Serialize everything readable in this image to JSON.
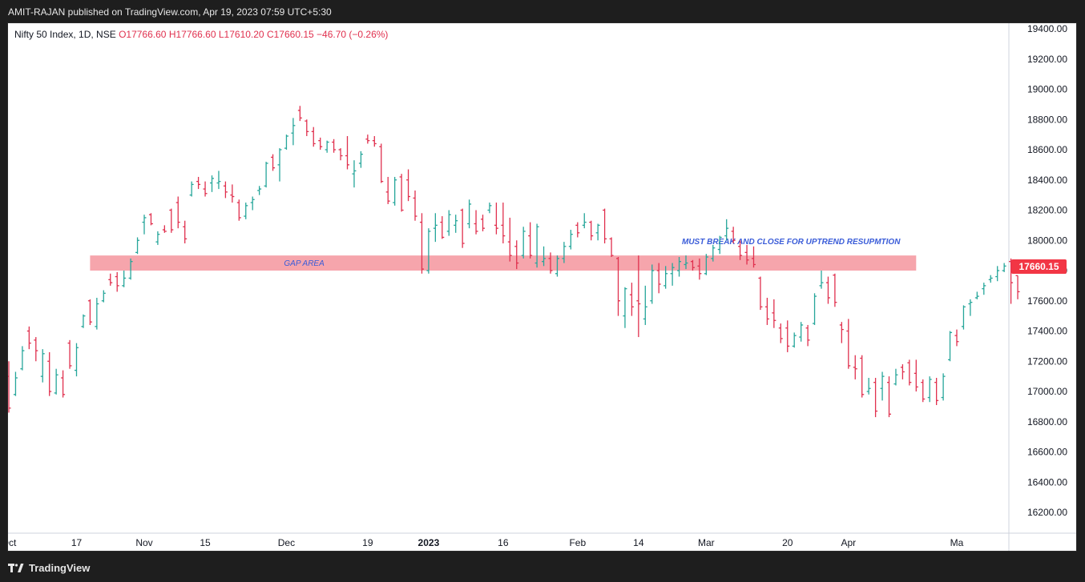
{
  "header": {
    "publisher_line": "AMIT-RAJAN published on TradingView.com, Apr 19, 2023 07:59 UTC+5:30"
  },
  "legend": {
    "symbol": "Nifty 50 Index, 1D, NSE",
    "open": "O17766.60",
    "high": "H17766.60",
    "low": "L17610.20",
    "close": "C17660.15",
    "change": "−46.70 (−0.26%)"
  },
  "price_badge": "17660.15",
  "footer": {
    "brand": "TradingView"
  },
  "colors": {
    "up": "#26a69a",
    "down": "#e0304e",
    "zone_fill": "#f6a0a8",
    "zone_text": "#3a5cd8",
    "badge": "#f23645"
  },
  "chart_data": {
    "type": "ohlc",
    "title": "Nifty 50 Index, 1D, NSE",
    "ylim": [
      16000,
      19500
    ],
    "y_ticks": [
      "19400.00",
      "19200.00",
      "19000.00",
      "18800.00",
      "18600.00",
      "18400.00",
      "18200.00",
      "18000.00",
      "17800.00",
      "17600.00",
      "17400.00",
      "17200.00",
      "17000.00",
      "16800.00",
      "16600.00",
      "16400.00",
      "16200.00"
    ],
    "x_ticks": [
      {
        "label": "Oct",
        "bar": 0
      },
      {
        "label": "17",
        "bar": 10
      },
      {
        "label": "Nov",
        "bar": 20
      },
      {
        "label": "15",
        "bar": 29
      },
      {
        "label": "Dec",
        "bar": 41
      },
      {
        "label": "19",
        "bar": 53
      },
      {
        "label": "2023",
        "bar": 62
      },
      {
        "label": "16",
        "bar": 73
      },
      {
        "label": "Feb",
        "bar": 84
      },
      {
        "label": "14",
        "bar": 93
      },
      {
        "label": "Mar",
        "bar": 103
      },
      {
        "label": "20",
        "bar": 115
      },
      {
        "label": "Apr",
        "bar": 124
      },
      {
        "label": "Ma",
        "bar": 140
      }
    ],
    "zone": {
      "low": 17800,
      "high": 17900,
      "bar_start": 12,
      "bar_end": 134,
      "label": "GAP AREA"
    },
    "annotation": {
      "text": "MUST BREAK AND CLOSE FOR UPTREND RESUPMTION",
      "bar": 100,
      "price": 17990
    },
    "series": [
      {
        "o": 17100,
        "h": 17200,
        "l": 16860,
        "c": 16890
      },
      {
        "o": 16980,
        "h": 17130,
        "l": 16970,
        "c": 17090
      },
      {
        "o": 17150,
        "h": 17300,
        "l": 17140,
        "c": 17270
      },
      {
        "o": 17400,
        "h": 17430,
        "l": 17280,
        "c": 17320
      },
      {
        "o": 17340,
        "h": 17360,
        "l": 17200,
        "c": 17270
      },
      {
        "o": 17100,
        "h": 17280,
        "l": 17060,
        "c": 17250
      },
      {
        "o": 17200,
        "h": 17260,
        "l": 16970,
        "c": 17000
      },
      {
        "o": 16990,
        "h": 17150,
        "l": 16980,
        "c": 17110
      },
      {
        "o": 17090,
        "h": 17140,
        "l": 16960,
        "c": 16980
      },
      {
        "o": 17320,
        "h": 17340,
        "l": 17150,
        "c": 17170
      },
      {
        "o": 17140,
        "h": 17320,
        "l": 17100,
        "c": 17290
      },
      {
        "o": 17430,
        "h": 17510,
        "l": 17420,
        "c": 17500
      },
      {
        "o": 17600,
        "h": 17610,
        "l": 17440,
        "c": 17460
      },
      {
        "o": 17430,
        "h": 17620,
        "l": 17410,
        "c": 17580
      },
      {
        "o": 17600,
        "h": 17670,
        "l": 17590,
        "c": 17650
      },
      {
        "o": 17740,
        "h": 17780,
        "l": 17700,
        "c": 17720
      },
      {
        "o": 17760,
        "h": 17790,
        "l": 17660,
        "c": 17700
      },
      {
        "o": 17700,
        "h": 17800,
        "l": 17690,
        "c": 17750
      },
      {
        "o": 17750,
        "h": 17880,
        "l": 17740,
        "c": 17860
      },
      {
        "o": 17920,
        "h": 18020,
        "l": 17910,
        "c": 18000
      },
      {
        "o": 18120,
        "h": 18170,
        "l": 18040,
        "c": 18150
      },
      {
        "o": 18170,
        "h": 18180,
        "l": 18100,
        "c": 18110
      },
      {
        "o": 17990,
        "h": 18060,
        "l": 17970,
        "c": 18040
      },
      {
        "o": 18070,
        "h": 18100,
        "l": 18050,
        "c": 18060
      },
      {
        "o": 18200,
        "h": 18210,
        "l": 18050,
        "c": 18070
      },
      {
        "o": 18250,
        "h": 18290,
        "l": 18080,
        "c": 18120
      },
      {
        "o": 18090,
        "h": 18130,
        "l": 17980,
        "c": 18010
      },
      {
        "o": 18300,
        "h": 18390,
        "l": 18290,
        "c": 18370
      },
      {
        "o": 18390,
        "h": 18420,
        "l": 18340,
        "c": 18370
      },
      {
        "o": 18340,
        "h": 18390,
        "l": 18290,
        "c": 18310
      },
      {
        "o": 18380,
        "h": 18430,
        "l": 18320,
        "c": 18410
      },
      {
        "o": 18380,
        "h": 18460,
        "l": 18340,
        "c": 18390
      },
      {
        "o": 18360,
        "h": 18390,
        "l": 18280,
        "c": 18320
      },
      {
        "o": 18300,
        "h": 18370,
        "l": 18250,
        "c": 18290
      },
      {
        "o": 18250,
        "h": 18270,
        "l": 18130,
        "c": 18150
      },
      {
        "o": 18160,
        "h": 18250,
        "l": 18140,
        "c": 18230
      },
      {
        "o": 18250,
        "h": 18290,
        "l": 18200,
        "c": 18270
      },
      {
        "o": 18330,
        "h": 18360,
        "l": 18300,
        "c": 18340
      },
      {
        "o": 18360,
        "h": 18520,
        "l": 18350,
        "c": 18510
      },
      {
        "o": 18550,
        "h": 18570,
        "l": 18460,
        "c": 18480
      },
      {
        "o": 18500,
        "h": 18610,
        "l": 18390,
        "c": 18600
      },
      {
        "o": 18610,
        "h": 18700,
        "l": 18600,
        "c": 18690
      },
      {
        "o": 18710,
        "h": 18810,
        "l": 18630,
        "c": 18760
      },
      {
        "o": 18860,
        "h": 18890,
        "l": 18790,
        "c": 18810
      },
      {
        "o": 18790,
        "h": 18800,
        "l": 18690,
        "c": 18720
      },
      {
        "o": 18720,
        "h": 18750,
        "l": 18620,
        "c": 18640
      },
      {
        "o": 18660,
        "h": 18680,
        "l": 18600,
        "c": 18620
      },
      {
        "o": 18600,
        "h": 18660,
        "l": 18580,
        "c": 18650
      },
      {
        "o": 18650,
        "h": 18670,
        "l": 18580,
        "c": 18600
      },
      {
        "o": 18600,
        "h": 18610,
        "l": 18530,
        "c": 18560
      },
      {
        "o": 18560,
        "h": 18690,
        "l": 18470,
        "c": 18500
      },
      {
        "o": 18440,
        "h": 18530,
        "l": 18350,
        "c": 18460
      },
      {
        "o": 18510,
        "h": 18590,
        "l": 18480,
        "c": 18570
      },
      {
        "o": 18670,
        "h": 18700,
        "l": 18640,
        "c": 18660
      },
      {
        "o": 18660,
        "h": 18690,
        "l": 18620,
        "c": 18640
      },
      {
        "o": 18620,
        "h": 18640,
        "l": 18380,
        "c": 18390
      },
      {
        "o": 18320,
        "h": 18420,
        "l": 18240,
        "c": 18260
      },
      {
        "o": 18250,
        "h": 18420,
        "l": 18230,
        "c": 18400
      },
      {
        "o": 18420,
        "h": 18440,
        "l": 18190,
        "c": 18200
      },
      {
        "o": 18400,
        "h": 18470,
        "l": 18260,
        "c": 18290
      },
      {
        "o": 18280,
        "h": 18330,
        "l": 18130,
        "c": 18160
      },
      {
        "o": 18120,
        "h": 18180,
        "l": 17780,
        "c": 17810
      },
      {
        "o": 17800,
        "h": 18080,
        "l": 17780,
        "c": 18060
      },
      {
        "o": 18080,
        "h": 18180,
        "l": 17990,
        "c": 18100
      },
      {
        "o": 18120,
        "h": 18160,
        "l": 18010,
        "c": 18020
      },
      {
        "o": 18060,
        "h": 18200,
        "l": 18030,
        "c": 18170
      },
      {
        "o": 18100,
        "h": 18170,
        "l": 18050,
        "c": 18130
      },
      {
        "o": 18200,
        "h": 18210,
        "l": 17950,
        "c": 17980
      },
      {
        "o": 18110,
        "h": 18270,
        "l": 18080,
        "c": 18240
      },
      {
        "o": 18110,
        "h": 18200,
        "l": 18040,
        "c": 18060
      },
      {
        "o": 18140,
        "h": 18170,
        "l": 18060,
        "c": 18080
      },
      {
        "o": 18200,
        "h": 18250,
        "l": 18180,
        "c": 18230
      },
      {
        "o": 18100,
        "h": 18250,
        "l": 18040,
        "c": 18080
      },
      {
        "o": 18100,
        "h": 18250,
        "l": 17980,
        "c": 18030
      },
      {
        "o": 17990,
        "h": 18150,
        "l": 17860,
        "c": 17900
      },
      {
        "o": 17960,
        "h": 18000,
        "l": 17810,
        "c": 17850
      },
      {
        "o": 17900,
        "h": 18090,
        "l": 17880,
        "c": 18060
      },
      {
        "o": 18030,
        "h": 18120,
        "l": 17880,
        "c": 17900
      },
      {
        "o": 17850,
        "h": 18110,
        "l": 17820,
        "c": 18090
      },
      {
        "o": 17860,
        "h": 17960,
        "l": 17830,
        "c": 17880
      },
      {
        "o": 17880,
        "h": 17920,
        "l": 17780,
        "c": 17800
      },
      {
        "o": 17780,
        "h": 17900,
        "l": 17760,
        "c": 17880
      },
      {
        "o": 17880,
        "h": 17990,
        "l": 17850,
        "c": 17960
      },
      {
        "o": 17960,
        "h": 18070,
        "l": 17940,
        "c": 18040
      },
      {
        "o": 18100,
        "h": 18120,
        "l": 18020,
        "c": 18050
      },
      {
        "o": 18100,
        "h": 18180,
        "l": 18080,
        "c": 18120
      },
      {
        "o": 18120,
        "h": 18130,
        "l": 18000,
        "c": 18030
      },
      {
        "o": 18050,
        "h": 18110,
        "l": 18000,
        "c": 18100
      },
      {
        "o": 18200,
        "h": 18210,
        "l": 17980,
        "c": 18010
      },
      {
        "o": 18010,
        "h": 18020,
        "l": 17890,
        "c": 17900
      },
      {
        "o": 17880,
        "h": 17890,
        "l": 17500,
        "c": 17600
      },
      {
        "o": 17500,
        "h": 17690,
        "l": 17420,
        "c": 17680
      },
      {
        "o": 17640,
        "h": 17720,
        "l": 17500,
        "c": 17560
      },
      {
        "o": 17600,
        "h": 17900,
        "l": 17360,
        "c": 17580
      },
      {
        "o": 17480,
        "h": 17700,
        "l": 17440,
        "c": 17560
      },
      {
        "o": 17600,
        "h": 17840,
        "l": 17580,
        "c": 17800
      },
      {
        "o": 17800,
        "h": 17850,
        "l": 17650,
        "c": 17710
      },
      {
        "o": 17700,
        "h": 17830,
        "l": 17680,
        "c": 17780
      },
      {
        "o": 17780,
        "h": 17850,
        "l": 17700,
        "c": 17820
      },
      {
        "o": 17800,
        "h": 17890,
        "l": 17760,
        "c": 17860
      },
      {
        "o": 17840,
        "h": 17900,
        "l": 17810,
        "c": 17850
      },
      {
        "o": 17860,
        "h": 17870,
        "l": 17800,
        "c": 17820
      },
      {
        "o": 17830,
        "h": 17880,
        "l": 17740,
        "c": 17780
      },
      {
        "o": 17780,
        "h": 17910,
        "l": 17770,
        "c": 17890
      },
      {
        "o": 17880,
        "h": 17970,
        "l": 17860,
        "c": 17950
      },
      {
        "o": 17940,
        "h": 18030,
        "l": 17910,
        "c": 18020
      },
      {
        "o": 18030,
        "h": 18140,
        "l": 18000,
        "c": 18080
      },
      {
        "o": 18060,
        "h": 18090,
        "l": 17980,
        "c": 18000
      },
      {
        "o": 17960,
        "h": 18000,
        "l": 17870,
        "c": 17900
      },
      {
        "o": 17920,
        "h": 17970,
        "l": 17840,
        "c": 17870
      },
      {
        "o": 17880,
        "h": 17960,
        "l": 17820,
        "c": 17840
      },
      {
        "o": 17750,
        "h": 17760,
        "l": 17540,
        "c": 17560
      },
      {
        "o": 17560,
        "h": 17620,
        "l": 17440,
        "c": 17480
      },
      {
        "o": 17520,
        "h": 17610,
        "l": 17420,
        "c": 17470
      },
      {
        "o": 17420,
        "h": 17450,
        "l": 17320,
        "c": 17350
      },
      {
        "o": 17420,
        "h": 17470,
        "l": 17260,
        "c": 17300
      },
      {
        "o": 17300,
        "h": 17390,
        "l": 17290,
        "c": 17370
      },
      {
        "o": 17360,
        "h": 17460,
        "l": 17330,
        "c": 17440
      },
      {
        "o": 17420,
        "h": 17440,
        "l": 17300,
        "c": 17340
      },
      {
        "o": 17450,
        "h": 17650,
        "l": 17440,
        "c": 17630
      },
      {
        "o": 17700,
        "h": 17800,
        "l": 17680,
        "c": 17720
      },
      {
        "o": 17720,
        "h": 17760,
        "l": 17580,
        "c": 17620
      },
      {
        "o": 17770,
        "h": 17780,
        "l": 17560,
        "c": 17590
      },
      {
        "o": 17440,
        "h": 17460,
        "l": 17320,
        "c": 17410
      },
      {
        "o": 17400,
        "h": 17480,
        "l": 17150,
        "c": 17170
      },
      {
        "o": 17160,
        "h": 17240,
        "l": 17080,
        "c": 17150
      },
      {
        "o": 17220,
        "h": 17240,
        "l": 16960,
        "c": 16980
      },
      {
        "o": 17000,
        "h": 17090,
        "l": 16980,
        "c": 17020
      },
      {
        "o": 17060,
        "h": 17090,
        "l": 16830,
        "c": 16870
      },
      {
        "o": 17020,
        "h": 17130,
        "l": 16940,
        "c": 17100
      },
      {
        "o": 17060,
        "h": 17100,
        "l": 16830,
        "c": 16850
      },
      {
        "o": 17050,
        "h": 17150,
        "l": 17040,
        "c": 17110
      },
      {
        "o": 17160,
        "h": 17180,
        "l": 17080,
        "c": 17130
      },
      {
        "o": 17190,
        "h": 17210,
        "l": 17040,
        "c": 17060
      },
      {
        "o": 17120,
        "h": 17210,
        "l": 17000,
        "c": 17030
      },
      {
        "o": 17060,
        "h": 17080,
        "l": 16930,
        "c": 16950
      },
      {
        "o": 16960,
        "h": 17100,
        "l": 16930,
        "c": 17080
      },
      {
        "o": 17060,
        "h": 17090,
        "l": 16910,
        "c": 16940
      },
      {
        "o": 16960,
        "h": 17120,
        "l": 16940,
        "c": 17100
      },
      {
        "o": 17210,
        "h": 17400,
        "l": 17200,
        "c": 17390
      },
      {
        "o": 17370,
        "h": 17410,
        "l": 17300,
        "c": 17330
      },
      {
        "o": 17430,
        "h": 17570,
        "l": 17410,
        "c": 17560
      },
      {
        "o": 17580,
        "h": 17610,
        "l": 17500,
        "c": 17590
      },
      {
        "o": 17620,
        "h": 17660,
        "l": 17610,
        "c": 17630
      },
      {
        "o": 17680,
        "h": 17720,
        "l": 17640,
        "c": 17700
      },
      {
        "o": 17740,
        "h": 17770,
        "l": 17720,
        "c": 17750
      },
      {
        "o": 17760,
        "h": 17830,
        "l": 17730,
        "c": 17800
      },
      {
        "o": 17800,
        "h": 17850,
        "l": 17790,
        "c": 17830
      },
      {
        "o": 17860,
        "h": 17880,
        "l": 17580,
        "c": 17720
      },
      {
        "o": 17766.6,
        "h": 17766.6,
        "l": 17610.2,
        "c": 17660.15
      }
    ]
  }
}
